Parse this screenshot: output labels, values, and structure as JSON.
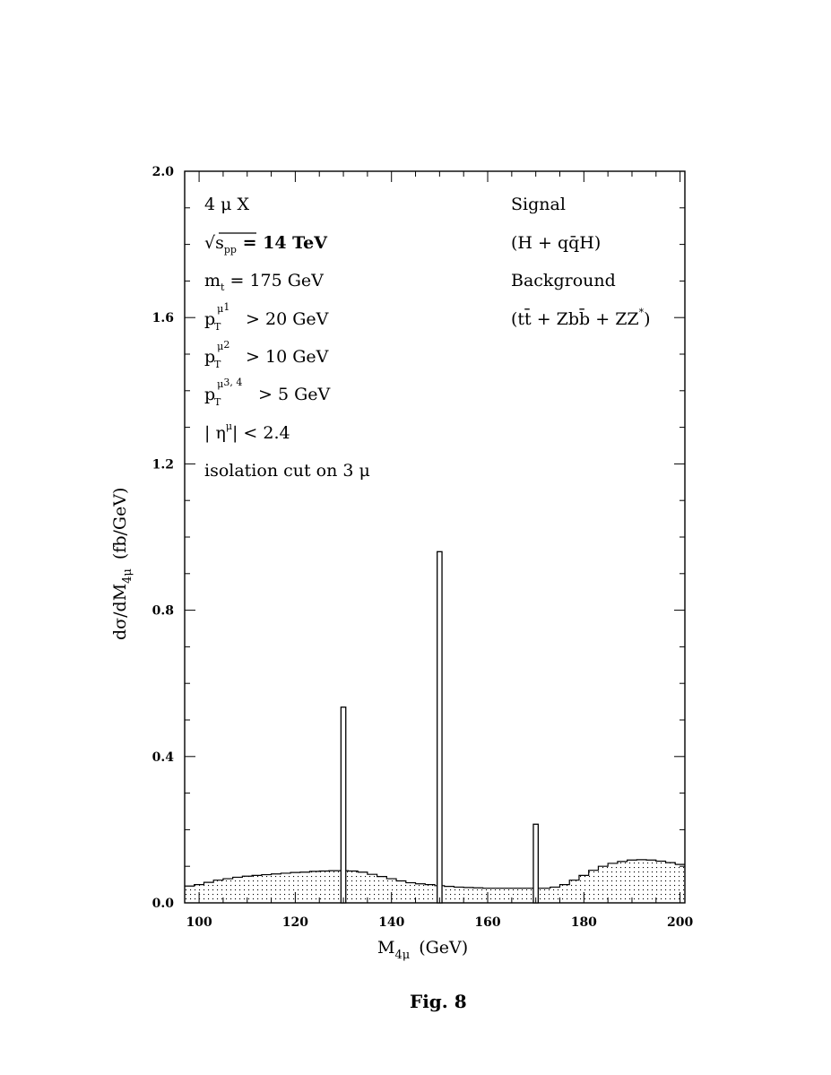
{
  "chart_data": {
    "type": "bar",
    "xlabel": {
      "main": "M",
      "sub": "4μ",
      "unit": "(GeV)"
    },
    "ylabel": {
      "main": "dσ/dM",
      "sub": "4μ",
      "unit": "(fb/GeV)"
    },
    "xlim": [
      97,
      201
    ],
    "ylim": [
      0,
      2.0
    ],
    "x_ticks": [
      100,
      120,
      140,
      160,
      180,
      200
    ],
    "y_ticks": [
      0,
      0.4,
      0.8,
      1.2,
      1.6,
      2.0
    ],
    "x_tick_labels": [
      "100",
      "120",
      "140",
      "160",
      "180",
      "200"
    ],
    "y_tick_labels": [
      "0.0",
      "0.4",
      "0.8",
      "1.2",
      "1.6",
      "2.0"
    ],
    "grid": false,
    "series": [
      {
        "name": "Background",
        "style": "dotted-fill-step",
        "x": [
          97,
          99,
          101,
          103,
          105,
          107,
          109,
          111,
          113,
          115,
          117,
          119,
          121,
          123,
          125,
          127,
          129,
          131,
          133,
          135,
          137,
          139,
          141,
          143,
          145,
          147,
          149,
          151,
          153,
          155,
          157,
          159,
          161,
          163,
          165,
          167,
          169,
          171,
          173,
          175,
          177,
          179,
          181,
          183,
          185,
          187,
          189,
          191,
          193,
          195,
          197,
          199,
          201
        ],
        "values": [
          0.046,
          0.05,
          0.056,
          0.062,
          0.066,
          0.07,
          0.073,
          0.075,
          0.077,
          0.079,
          0.081,
          0.083,
          0.084,
          0.086,
          0.087,
          0.088,
          0.088,
          0.087,
          0.084,
          0.078,
          0.072,
          0.066,
          0.06,
          0.055,
          0.052,
          0.05,
          0.047,
          0.045,
          0.043,
          0.042,
          0.041,
          0.04,
          0.04,
          0.04,
          0.04,
          0.04,
          0.04,
          0.04,
          0.043,
          0.05,
          0.062,
          0.075,
          0.089,
          0.1,
          0.108,
          0.113,
          0.117,
          0.118,
          0.117,
          0.114,
          0.11,
          0.105,
          0.1
        ]
      },
      {
        "name": "Signal",
        "style": "open-bar",
        "x": [
          130,
          150,
          170
        ],
        "width": 1,
        "values": [
          0.535,
          0.96,
          0.215
        ]
      }
    ],
    "annotations_left": [
      "4 μ X",
      "√s",
      "m",
      "p",
      "p",
      "p",
      "| η",
      "isolation cut on 3 μ"
    ],
    "annotations_right": [
      "Signal",
      "(H + qq̄H)",
      "Background",
      "(tt̄ + Zbb̄ + ZZ",
      "*",
      ")"
    ],
    "annotation_parts": {
      "sqrt_s_sub": "pp",
      "sqrt_s_value": " = 14 TeV",
      "mt_sub": "t",
      "mt_value": " = 175 GeV",
      "pt1_sup": "μ",
      "pt1_sub": "T",
      "pt1_index": "1",
      "pt1_value": " > 20 GeV",
      "pt2_sup": "μ",
      "pt2_sub": "T",
      "pt2_index": "2",
      "pt2_value": " > 10 GeV",
      "pt34_sup": "μ",
      "pt34_sub": "T",
      "pt34_index": "3, 4",
      "pt34_value": " > 5 GeV",
      "eta_sup": "μ",
      "eta_value": "| < 2.4"
    },
    "caption": "Fig. 8"
  }
}
